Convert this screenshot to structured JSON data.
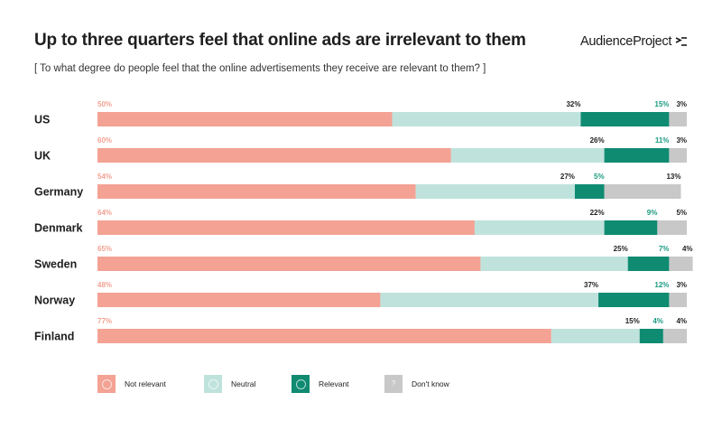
{
  "header": {
    "title": "Up to three quarters feel that online ads are irrelevant to them",
    "subtitle": "[ To what degree do people feel that the online advertisements they receive are relevant to them? ]",
    "brand": "AudienceProject",
    "brand_icon": "audienceproject-logo-icon"
  },
  "colors": {
    "not_relevant": "#f3a294",
    "neutral": "#bfe3dc",
    "relevant": "#0f8b72",
    "dont_know": "#c8c8c8",
    "label_not_relevant": "#f3a294",
    "label_relevant": "#1a9a80",
    "label_default": "#222222"
  },
  "chart_data": {
    "type": "bar",
    "orientation": "horizontal",
    "stacked": true,
    "categories": [
      "US",
      "UK",
      "Germany",
      "Denmark",
      "Sweden",
      "Norway",
      "Finland"
    ],
    "series": [
      {
        "name": "Not relevant",
        "values": [
          50,
          60,
          54,
          64,
          65,
          48,
          77
        ],
        "labels": [
          "50%",
          "60%",
          "54%",
          "64%",
          "65%",
          "48%",
          "77%"
        ]
      },
      {
        "name": "Neutral",
        "values": [
          32,
          26,
          27,
          22,
          25,
          37,
          15
        ],
        "labels": [
          "32%",
          "26%",
          "27%",
          "22%",
          "25%",
          "37%",
          "15%"
        ]
      },
      {
        "name": "Relevant",
        "values": [
          15,
          11,
          5,
          9,
          7,
          12,
          4
        ],
        "labels": [
          "15%",
          "11%",
          "5%",
          "9%",
          "7%",
          "12%",
          "4%"
        ]
      },
      {
        "name": "Don't know",
        "values": [
          3,
          3,
          13,
          5,
          4,
          3,
          4
        ],
        "labels": [
          "3%",
          "3%",
          "13%",
          "5%",
          "4%",
          "3%",
          "4%"
        ]
      }
    ],
    "legend_position": "bottom",
    "grid": false
  },
  "legend": {
    "items": [
      {
        "label": "Not relevant",
        "icon": "frown-face-icon",
        "glyph": "☹"
      },
      {
        "label": "Neutral",
        "icon": "neutral-face-icon",
        "glyph": "😐"
      },
      {
        "label": "Relevant",
        "icon": "smile-face-icon",
        "glyph": "☺"
      },
      {
        "label": "Don't know",
        "icon": "question-mark-icon",
        "glyph": "?"
      }
    ]
  }
}
